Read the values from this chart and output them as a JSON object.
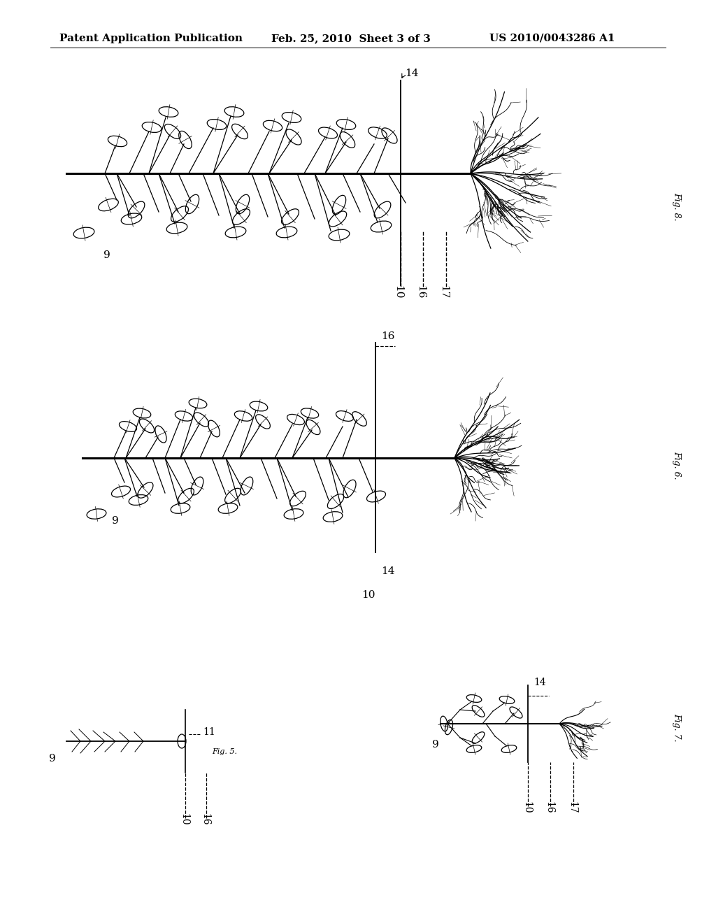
{
  "header_left": "Patent Application Publication",
  "header_mid": "Feb. 25, 2010  Sheet 3 of 3",
  "header_right": "US 2010/0043286 A1",
  "background_color": "#ffffff",
  "text_color": "#000000",
  "fig8_label": "Fig. 8.",
  "fig6_label": "Fig. 6.",
  "fig5_label": "Fig. 5.",
  "fig7_label": "Fig. 7.",
  "header_fontsize": 11,
  "fig_label_fontsize": 9,
  "ref_num_fontsize": 11
}
